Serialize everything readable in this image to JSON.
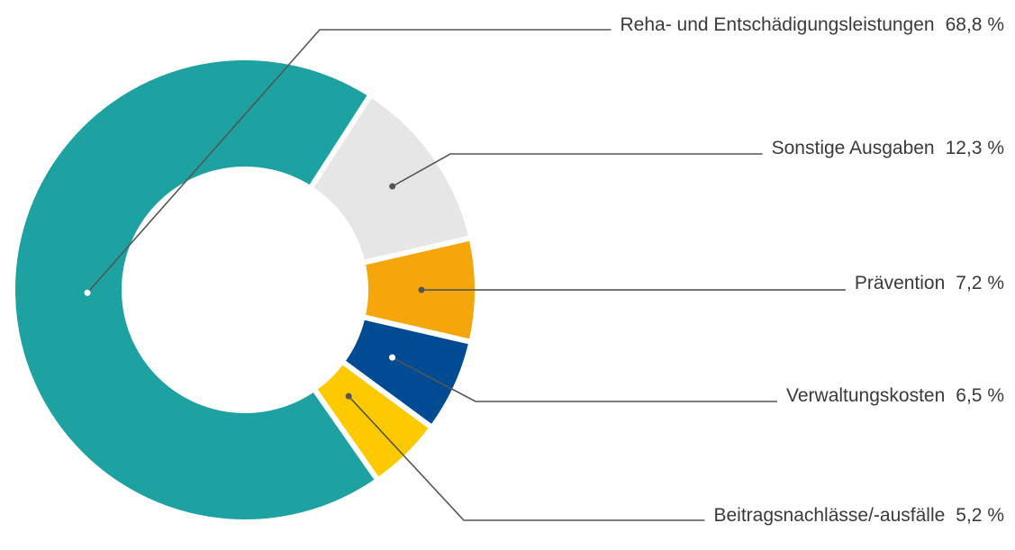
{
  "chart_data": {
    "type": "donut",
    "categories": [
      "Reha- und Entschädigungsleistungen",
      "Sonstige Ausgaben",
      "Prävention",
      "Verwaltungskosten",
      "Beitragsnachlässe/-ausfälle"
    ],
    "values": [
      68.8,
      12.3,
      7.2,
      6.5,
      5.2
    ],
    "value_labels": [
      "68,8 %",
      "12,3 %",
      "7,2 %",
      "6,5 %",
      "5,2 %"
    ],
    "colors": [
      "#1ea1a1",
      "#e6e6e6",
      "#f4a60b",
      "#004b93",
      "#fdca00"
    ]
  }
}
